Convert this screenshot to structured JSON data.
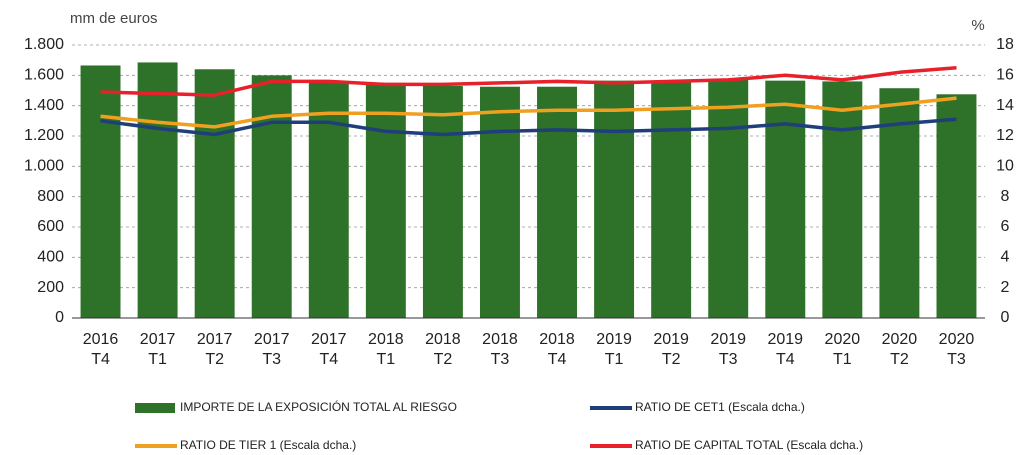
{
  "chart_data": {
    "type": "bar",
    "y_label": "mm de euros",
    "y2_label": "%",
    "categories": [
      [
        "2016",
        "T4"
      ],
      [
        "2017",
        "T1"
      ],
      [
        "2017",
        "T2"
      ],
      [
        "2017",
        "T3"
      ],
      [
        "2017",
        "T4"
      ],
      [
        "2018",
        "T1"
      ],
      [
        "2018",
        "T2"
      ],
      [
        "2018",
        "T3"
      ],
      [
        "2018",
        "T4"
      ],
      [
        "2019",
        "T1"
      ],
      [
        "2019",
        "T2"
      ],
      [
        "2019",
        "T3"
      ],
      [
        "2019",
        "T4"
      ],
      [
        "2020",
        "T1"
      ],
      [
        "2020",
        "T2"
      ],
      [
        "2020",
        "T3"
      ]
    ],
    "series": [
      {
        "name": "IMPORTE DE LA EXPOSICIÓN TOTAL AL RIESGO",
        "type": "bar",
        "color": "#2e7128",
        "values": [
          1665,
          1685,
          1640,
          1600,
          1550,
          1550,
          1530,
          1525,
          1525,
          1565,
          1565,
          1575,
          1565,
          1560,
          1515,
          1475
        ]
      },
      {
        "name": "RATIO DE CET1 (Escala dcha.)",
        "type": "line",
        "axis": "y2",
        "color": "#1f3f7a",
        "values": [
          13.0,
          12.5,
          12.1,
          12.9,
          12.9,
          12.3,
          12.1,
          12.3,
          12.4,
          12.3,
          12.4,
          12.5,
          12.8,
          12.4,
          12.8,
          13.1
        ]
      },
      {
        "name": "RATIO DE TIER 1 (Escala dcha.)",
        "type": "line",
        "axis": "y2",
        "color": "#f0a020",
        "values": [
          13.3,
          12.9,
          12.6,
          13.3,
          13.5,
          13.5,
          13.4,
          13.6,
          13.7,
          13.7,
          13.8,
          13.9,
          14.1,
          13.7,
          14.1,
          14.5
        ]
      },
      {
        "name": "RATIO DE CAPITAL TOTAL (Escala dcha.)",
        "type": "line",
        "axis": "y2",
        "color": "#e8202a",
        "values": [
          14.9,
          14.8,
          14.7,
          15.6,
          15.6,
          15.4,
          15.4,
          15.5,
          15.6,
          15.5,
          15.6,
          15.7,
          16.0,
          15.7,
          16.2,
          16.5
        ]
      }
    ],
    "ylim": [
      0,
      1800
    ],
    "yticks": [
      0,
      200,
      400,
      600,
      800,
      {
        "value": 1000,
        "label": "1.000"
      },
      {
        "value": 1200,
        "label": "1.200"
      },
      {
        "value": 1400,
        "label": "1.400"
      },
      {
        "value": 1600,
        "label": "1.600"
      },
      {
        "value": 1800,
        "label": "1.800"
      }
    ],
    "y2lim": [
      0,
      18
    ],
    "y2ticks": [
      0,
      2,
      4,
      6,
      8,
      10,
      12,
      14,
      16,
      18
    ],
    "grid": true
  }
}
